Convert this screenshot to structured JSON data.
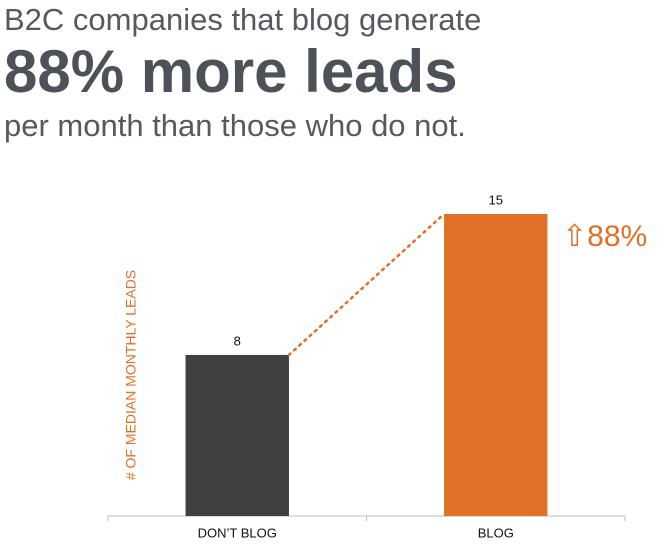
{
  "chart_data": {
    "type": "bar",
    "title": [
      "B2C companies that blog generate",
      "88% more leads",
      "per month than those who do not."
    ],
    "y_label": "# OF MEDIAN MONTHLY LEADS",
    "categories": [
      "DON’T BLOG",
      "BLOG"
    ],
    "values": [
      8,
      15
    ],
    "colors": [
      "#404040",
      "#e07028"
    ],
    "annotation": "⇧88%",
    "ylim": [
      0,
      15
    ]
  }
}
